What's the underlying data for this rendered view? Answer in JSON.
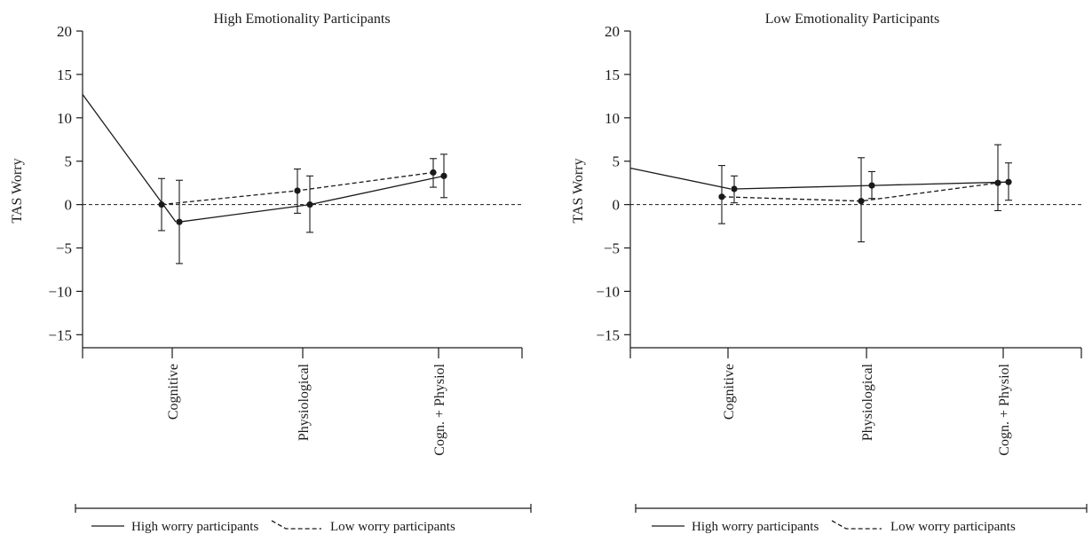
{
  "chart_data": [
    {
      "type": "line",
      "title": "High Emotionality Participants",
      "ylabel": "TAS Worry",
      "xlabel": "",
      "ylim": [
        -16.5,
        20
      ],
      "yticks": [
        20,
        15,
        10,
        5,
        0,
        -5,
        -10,
        -15
      ],
      "ytick_labels": [
        "20",
        "15",
        "10",
        "5",
        "0",
        "−5",
        "−10",
        "−15"
      ],
      "categories": [
        "Cognitive",
        "Physiological",
        "Cogn. + Physiol"
      ],
      "reference_line": 0,
      "grid": false,
      "legend_position": "bottom",
      "series": [
        {
          "name": "High worry participants",
          "style": "solid",
          "values": [
            -2.0,
            0.0,
            3.3
          ],
          "err_low": [
            -6.8,
            -3.2,
            0.8
          ],
          "err_high": [
            2.8,
            3.3,
            5.8
          ],
          "lead_in": 12.7
        },
        {
          "name": "Low worry participants",
          "style": "dashed",
          "values": [
            0.0,
            1.6,
            3.7
          ],
          "err_low": [
            -3.0,
            -1.0,
            2.0
          ],
          "err_high": [
            3.0,
            4.1,
            5.3
          ]
        }
      ]
    },
    {
      "type": "line",
      "title": "Low Emotionality Participants",
      "ylabel": "TAS Worry",
      "xlabel": "",
      "ylim": [
        -16.5,
        20
      ],
      "yticks": [
        20,
        15,
        10,
        5,
        0,
        -5,
        -10,
        -15
      ],
      "ytick_labels": [
        "20",
        "15",
        "10",
        "5",
        "0",
        "−5",
        "−10",
        "−15"
      ],
      "categories": [
        "Cognitive",
        "Physiological",
        "Cogn. + Physiol"
      ],
      "reference_line": 0,
      "grid": false,
      "legend_position": "bottom",
      "series": [
        {
          "name": "High worry participants",
          "style": "solid",
          "values": [
            1.8,
            2.2,
            2.6
          ],
          "err_low": [
            0.2,
            0.7,
            0.5
          ],
          "err_high": [
            3.3,
            3.8,
            4.8
          ],
          "lead_in": 4.2
        },
        {
          "name": "Low worry participants",
          "style": "dashed",
          "values": [
            0.9,
            0.4,
            2.5
          ],
          "err_low": [
            -2.2,
            -4.3,
            -0.7
          ],
          "err_high": [
            4.5,
            5.4,
            6.9
          ]
        }
      ]
    }
  ]
}
